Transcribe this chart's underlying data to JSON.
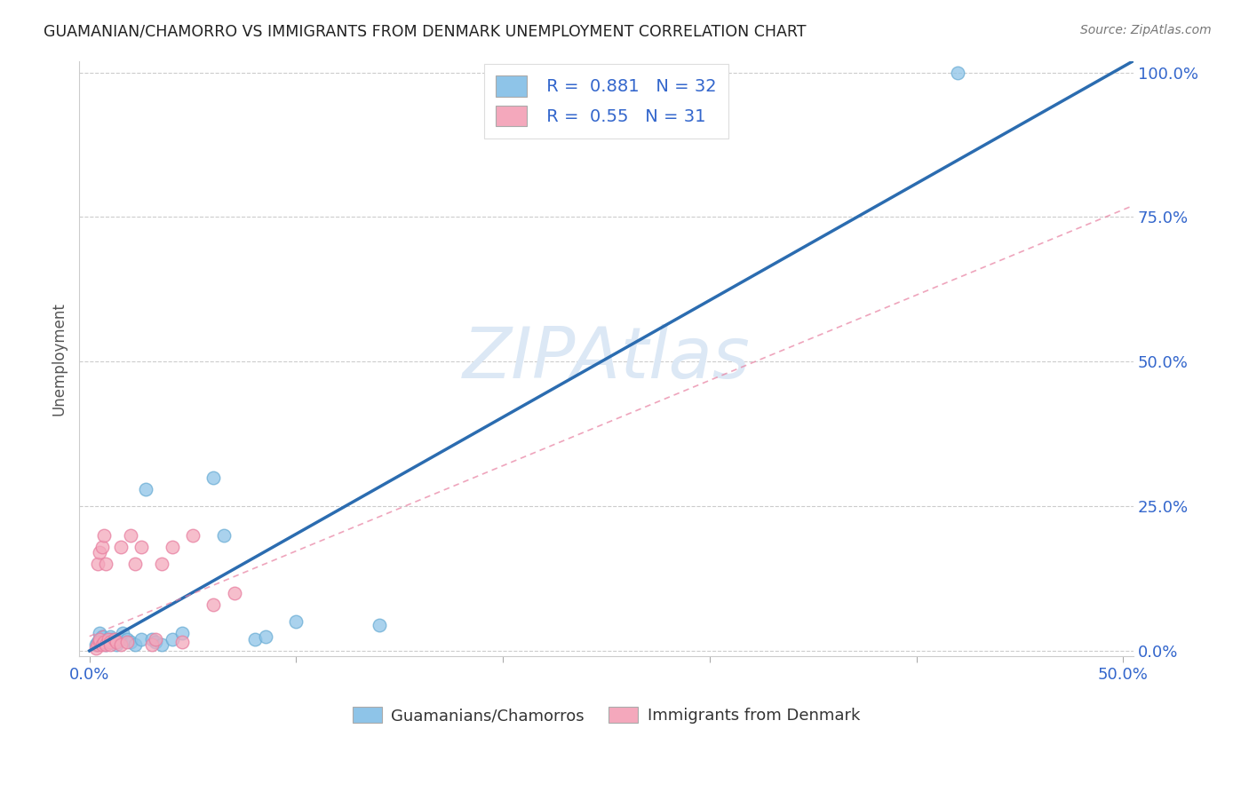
{
  "title": "GUAMANIAN/CHAMORRO VS IMMIGRANTS FROM DENMARK UNEMPLOYMENT CORRELATION CHART",
  "source": "Source: ZipAtlas.com",
  "xlabel": "",
  "ylabel": "Unemployment",
  "xlim": [
    0.0,
    0.5
  ],
  "ylim": [
    0.0,
    1.02
  ],
  "xtick_vals": [
    0.0,
    0.1,
    0.2,
    0.3,
    0.4,
    0.5
  ],
  "xtick_labels_show": {
    "0.0": "0.0%",
    "0.5": "50.0%"
  },
  "ytick_vals_right": [
    0.0,
    0.25,
    0.5,
    0.75,
    1.0
  ],
  "ytick_labels_right": [
    "0.0%",
    "25.0%",
    "50.0%",
    "75.0%",
    "100.0%"
  ],
  "blue_R": 0.881,
  "blue_N": 32,
  "pink_R": 0.55,
  "pink_N": 31,
  "blue_color": "#8ec4e8",
  "pink_color": "#f4a8bc",
  "blue_scatter_edge": "#6aadd5",
  "pink_scatter_edge": "#e87fa0",
  "blue_line_color": "#2b6cb0",
  "pink_line_color": "#e87fa0",
  "watermark": "ZIPAtlas",
  "watermark_color": "#dce8f5",
  "legend_label_blue": "Guamanians/Chamorros",
  "legend_label_pink": "Immigrants from Denmark",
  "blue_line_x": [
    0.0,
    0.505
  ],
  "blue_line_y": [
    0.0,
    1.02
  ],
  "pink_line_x": [
    0.0,
    0.505
  ],
  "pink_line_y": [
    0.025,
    0.77
  ],
  "blue_scatter_x": [
    0.003,
    0.004,
    0.005,
    0.005,
    0.006,
    0.007,
    0.008,
    0.009,
    0.01,
    0.01,
    0.011,
    0.012,
    0.013,
    0.015,
    0.016,
    0.018,
    0.02,
    0.022,
    0.025,
    0.027,
    0.03,
    0.032,
    0.035,
    0.04,
    0.045,
    0.06,
    0.065,
    0.08,
    0.085,
    0.1,
    0.14,
    0.42
  ],
  "blue_scatter_y": [
    0.01,
    0.015,
    0.02,
    0.03,
    0.025,
    0.015,
    0.01,
    0.02,
    0.015,
    0.025,
    0.02,
    0.015,
    0.01,
    0.02,
    0.03,
    0.02,
    0.015,
    0.01,
    0.02,
    0.28,
    0.02,
    0.015,
    0.01,
    0.02,
    0.03,
    0.3,
    0.2,
    0.02,
    0.025,
    0.05,
    0.045,
    1.0
  ],
  "pink_scatter_x": [
    0.003,
    0.004,
    0.004,
    0.005,
    0.005,
    0.005,
    0.006,
    0.006,
    0.007,
    0.007,
    0.008,
    0.008,
    0.009,
    0.01,
    0.01,
    0.012,
    0.013,
    0.015,
    0.015,
    0.018,
    0.02,
    0.022,
    0.025,
    0.03,
    0.032,
    0.035,
    0.04,
    0.045,
    0.05,
    0.06,
    0.07
  ],
  "pink_scatter_y": [
    0.005,
    0.01,
    0.15,
    0.015,
    0.02,
    0.17,
    0.01,
    0.18,
    0.015,
    0.2,
    0.01,
    0.15,
    0.02,
    0.015,
    0.01,
    0.02,
    0.015,
    0.01,
    0.18,
    0.015,
    0.2,
    0.15,
    0.18,
    0.01,
    0.02,
    0.15,
    0.18,
    0.015,
    0.2,
    0.08,
    0.1
  ]
}
